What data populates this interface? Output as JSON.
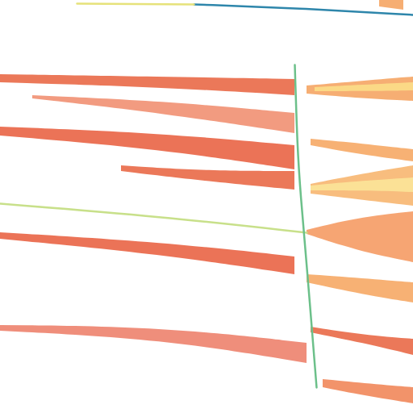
{
  "chart_data": {
    "type": "raster",
    "tick_labels": false,
    "xlim": [
      0,
      512
    ],
    "ylim": [
      512,
      0
    ],
    "features": [
      {
        "type": "area",
        "color": "#e8603c",
        "x": [
          0,
          200,
          365
        ],
        "top": [
          92,
          95,
          98
        ],
        "bottom": [
          102,
          108,
          118
        ]
      },
      {
        "type": "area",
        "color": "#f4a05a",
        "x": [
          380,
          450,
          512
        ],
        "top": [
          106,
          100,
          95
        ],
        "bottom": [
          116,
          122,
          125
        ]
      },
      {
        "type": "area",
        "color": "#fbe08a",
        "x": [
          390,
          450,
          512
        ],
        "top": [
          108,
          105,
          102
        ],
        "bottom": [
          113,
          113,
          112
        ]
      },
      {
        "type": "area",
        "color": "#f08a6a",
        "x": [
          40,
          200,
          365
        ],
        "top": [
          118,
          125,
          140
        ],
        "bottom": [
          122,
          140,
          165
        ]
      },
      {
        "type": "area",
        "color": "#e85a3a",
        "x": [
          0,
          200,
          365
        ],
        "top": [
          157,
          165,
          180
        ],
        "bottom": [
          168,
          185,
          210
        ]
      },
      {
        "type": "area",
        "color": "#f6a35c",
        "x": [
          385,
          450,
          512
        ],
        "top": [
          172,
          178,
          185
        ],
        "bottom": [
          180,
          192,
          200
        ]
      },
      {
        "type": "area",
        "color": "#e8603c",
        "x": [
          150,
          260,
          365
        ],
        "top": [
          205,
          212,
          212
        ],
        "bottom": [
          212,
          225,
          235
        ]
      },
      {
        "type": "area",
        "color": "#f7b267",
        "x": [
          385,
          450,
          512
        ],
        "top": [
          228,
          215,
          205
        ],
        "bottom": [
          240,
          248,
          255
        ]
      },
      {
        "type": "area",
        "color": "#fce79a",
        "x": [
          385,
          450,
          512
        ],
        "top": [
          230,
          224,
          220
        ],
        "bottom": [
          236,
          236,
          238
        ]
      },
      {
        "type": "area",
        "color": "#f4955a",
        "x": [
          380,
          440,
          512
        ],
        "top": [
          285,
          270,
          262
        ],
        "bottom": [
          290,
          310,
          325
        ]
      },
      {
        "type": "area",
        "color": "#e85a3a",
        "x": [
          0,
          200,
          365
        ],
        "top": [
          288,
          300,
          318
        ],
        "bottom": [
          296,
          315,
          340
        ]
      },
      {
        "type": "area",
        "color": "#f6a35c",
        "x": [
          380,
          450,
          512
        ],
        "top": [
          340,
          345,
          350
        ],
        "bottom": [
          350,
          365,
          375
        ]
      },
      {
        "type": "area",
        "color": "#ec7a64",
        "x": [
          0,
          200,
          380
        ],
        "top": [
          403,
          405,
          425
        ],
        "bottom": [
          410,
          420,
          450
        ]
      },
      {
        "type": "area",
        "color": "#e8603c",
        "x": [
          385,
          450,
          512
        ],
        "top": [
          405,
          415,
          420
        ],
        "bottom": [
          412,
          425,
          440
        ]
      },
      {
        "type": "area",
        "color": "#f08050",
        "x": [
          400,
          450,
          512
        ],
        "top": [
          470,
          475,
          480
        ],
        "bottom": [
          480,
          490,
          500
        ]
      },
      {
        "type": "area",
        "color": "#f4a05a",
        "x": [
          470,
          500
        ],
        "top": [
          0,
          0
        ],
        "bottom": [
          8,
          12
        ]
      },
      {
        "type": "line",
        "color": "#c8e08a",
        "x": [
          0,
          200,
          380
        ],
        "y": [
          252,
          268,
          288
        ]
      },
      {
        "type": "line",
        "color": "#2e86ab",
        "x": [
          240,
          380,
          512
        ],
        "y": [
          5,
          10,
          18
        ]
      },
      {
        "type": "line",
        "color": "#e6e27a",
        "x": [
          95,
          240
        ],
        "y": [
          4,
          5
        ]
      },
      {
        "type": "line",
        "color": "#6cc08a",
        "x": [
          365,
          368,
          372,
          380,
          392
        ],
        "y": [
          80,
          180,
          240,
          330,
          480
        ]
      }
    ]
  }
}
